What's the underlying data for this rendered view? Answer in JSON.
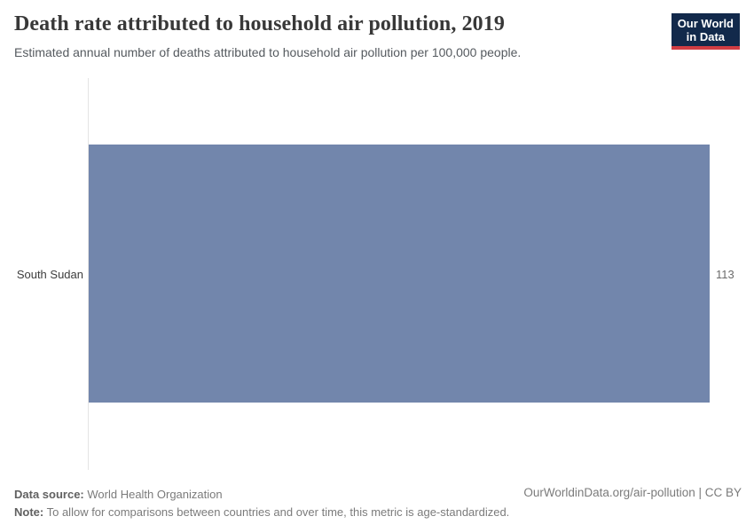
{
  "header": {
    "title": "Death rate attributed to household air pollution, 2019",
    "subtitle": "Estimated annual number of deaths attributed to household air pollution per 100,000 people.",
    "logo_line1": "Our World",
    "logo_line2": "in Data"
  },
  "chart_data": {
    "type": "bar",
    "orientation": "horizontal",
    "title": "Death rate attributed to household air pollution, 2019",
    "categories": [
      "South Sudan"
    ],
    "values": [
      113
    ],
    "value_labels": [
      "113"
    ],
    "xlabel": "",
    "ylabel": "",
    "xlim": [
      0,
      113
    ],
    "grid": false,
    "legend": "none",
    "bar_color": "#7286ac"
  },
  "footer": {
    "datasource_label": "Data source:",
    "datasource_value": "World Health Organization",
    "note_label": "Note:",
    "note_value": "To allow for comparisons between countries and over time, this metric is age-standardized.",
    "attribution": "OurWorldinData.org/air-pollution | CC BY"
  },
  "colors": {
    "bar": "#7286ac",
    "logo_background": "#12294b",
    "logo_accent": "#d13d43",
    "axis_line": "#e4e4e4",
    "title_text": "#383838",
    "muted_text": "#7b7b7b"
  }
}
